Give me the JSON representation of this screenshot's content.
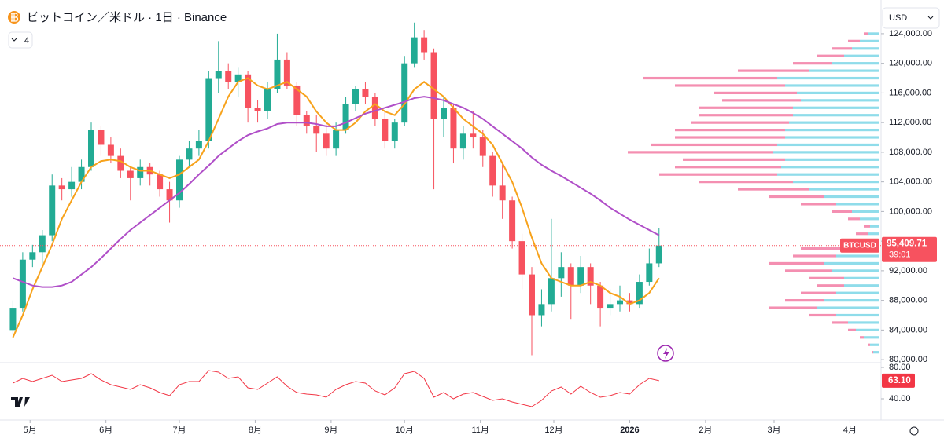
{
  "toolbar": {
    "currency": "USD",
    "hidden_indicators": 4
  },
  "chart_data": [
    {
      "type": "candlestick",
      "title": "ビットコイン／米ドル · 1日 · Binance",
      "symbol": "BTCUSD",
      "x": [
        0,
        4,
        8,
        12,
        16,
        20,
        24,
        28,
        32,
        36,
        40,
        44,
        48,
        52,
        56,
        60,
        64,
        68,
        72,
        76,
        80,
        84,
        88,
        92,
        96,
        100,
        104,
        108,
        112,
        116,
        120,
        124,
        128,
        132,
        136,
        140,
        144,
        148,
        152,
        156,
        160,
        164,
        168,
        172,
        176,
        180,
        184,
        188,
        192,
        196,
        200,
        204,
        208,
        212,
        216,
        220,
        224,
        228,
        232,
        236,
        240,
        244,
        248,
        252,
        256,
        260,
        264
      ],
      "open": [
        84000,
        87000,
        93500,
        94500,
        96800,
        103500,
        103000,
        104000,
        106000,
        111000,
        109000,
        107500,
        105500,
        104500,
        106000,
        105000,
        103000,
        101500,
        107000,
        108500,
        109500,
        118000,
        119000,
        117500,
        118500,
        114000,
        113500,
        116500,
        120500,
        117000,
        113000,
        111500,
        110500,
        108500,
        111000,
        114500,
        116500,
        115500,
        112500,
        109500,
        112000,
        120000,
        123500,
        121500,
        112500,
        114000,
        108500,
        110500,
        110000,
        107500,
        103500,
        101500,
        96000,
        91500,
        86000,
        87500,
        91000,
        92500,
        90000,
        92500,
        90000,
        87000,
        87500,
        88000,
        87500,
        90500,
        93000
      ],
      "high": [
        88000,
        94500,
        95500,
        97500,
        105000,
        104500,
        106000,
        107000,
        112000,
        111500,
        110000,
        108500,
        106000,
        107000,
        106500,
        105500,
        104000,
        107500,
        109500,
        111000,
        119000,
        123000,
        120000,
        119500,
        119000,
        115000,
        117500,
        124000,
        121500,
        117500,
        113500,
        113000,
        112000,
        112000,
        115500,
        117000,
        117500,
        116000,
        113500,
        112500,
        121000,
        125500,
        124500,
        122000,
        115500,
        114500,
        111500,
        113500,
        111000,
        108000,
        106500,
        102000,
        97000,
        92500,
        89500,
        99000,
        94500,
        93000,
        94000,
        93000,
        90500,
        89500,
        90000,
        89000,
        91500,
        95000,
        97800
      ],
      "low": [
        83500,
        86500,
        92500,
        93000,
        96000,
        101500,
        102000,
        103000,
        105500,
        107500,
        106500,
        104500,
        101500,
        103500,
        103500,
        102000,
        98500,
        100500,
        106000,
        107500,
        108500,
        116000,
        116500,
        115500,
        112000,
        112000,
        112500,
        116000,
        116500,
        111500,
        110500,
        108000,
        107500,
        107500,
        110500,
        113500,
        114500,
        111500,
        108500,
        108500,
        111500,
        119500,
        120500,
        103000,
        110000,
        106500,
        107000,
        108500,
        106000,
        102000,
        99000,
        95000,
        89500,
        80600,
        84500,
        86500,
        88500,
        85500,
        89000,
        87500,
        84500,
        86000,
        86500,
        86500,
        87000,
        90000,
        92500
      ],
      "close": [
        87000,
        93500,
        94500,
        96800,
        103500,
        103000,
        104000,
        106000,
        111000,
        109000,
        107500,
        105500,
        104500,
        106000,
        105000,
        103000,
        101500,
        107000,
        108500,
        109500,
        118000,
        119000,
        117500,
        118500,
        114000,
        113500,
        116500,
        120500,
        117000,
        113000,
        111500,
        110500,
        108500,
        111000,
        114500,
        116500,
        115500,
        112500,
        109500,
        112000,
        120000,
        123500,
        121500,
        112500,
        114000,
        108500,
        110500,
        110000,
        107500,
        103500,
        101500,
        96000,
        91500,
        86000,
        87500,
        91000,
        92500,
        90000,
        92500,
        90000,
        87000,
        87500,
        88000,
        87500,
        90500,
        93000,
        95409.71
      ],
      "up_color": "#22ab94",
      "down_color": "#f7525f",
      "series": [
        {
          "color": "#f7a21b",
          "values": [
            83000,
            86000,
            89500,
            92500,
            95500,
            99000,
            101500,
            104000,
            106000,
            106800,
            107000,
            106800,
            106000,
            105500,
            105500,
            105000,
            104500,
            105000,
            106000,
            107000,
            109500,
            112500,
            115500,
            117500,
            118000,
            117000,
            116500,
            117000,
            117500,
            116500,
            115500,
            113500,
            112000,
            111000,
            111000,
            112000,
            113500,
            114500,
            113500,
            113000,
            114500,
            116500,
            117500,
            116500,
            115500,
            114000,
            112500,
            111500,
            110500,
            109000,
            106500,
            104000,
            100500,
            96500,
            93000,
            91000,
            90500,
            90000,
            90000,
            90500,
            90000,
            89000,
            88500,
            87500,
            88000,
            89000,
            91000
          ]
        },
        {
          "color": "#b04fc8",
          "values": [
            91000,
            90500,
            90000,
            89800,
            89800,
            90000,
            90500,
            91500,
            92500,
            93700,
            95000,
            96300,
            97500,
            98500,
            99500,
            100500,
            101500,
            102500,
            103700,
            105000,
            106200,
            107500,
            108500,
            109500,
            110300,
            110800,
            111200,
            111800,
            112000,
            112000,
            112000,
            111800,
            111500,
            111500,
            112000,
            112600,
            113200,
            113600,
            114000,
            114400,
            114800,
            115300,
            115500,
            115300,
            115000,
            114500,
            114000,
            113300,
            112500,
            111500,
            110500,
            109500,
            108500,
            107300,
            106300,
            105500,
            104800,
            104000,
            103200,
            102400,
            101500,
            100500,
            99700,
            98900,
            98200,
            97500,
            96800
          ]
        }
      ],
      "last_price": 95409.71,
      "last_price_label": "95,409.71",
      "countdown": "39:01",
      "xlim": [
        -4,
        356
      ],
      "xticks": [
        {
          "value": 7,
          "label": "5月"
        },
        {
          "value": 38,
          "label": "6月"
        },
        {
          "value": 68,
          "label": "7月"
        },
        {
          "value": 99,
          "label": "8月"
        },
        {
          "value": 130,
          "label": "9月"
        },
        {
          "value": 160,
          "label": "10月"
        },
        {
          "value": 191,
          "label": "11月"
        },
        {
          "value": 221,
          "label": "12月"
        },
        {
          "value": 252,
          "label": "2026"
        },
        {
          "value": 283,
          "label": "2月"
        },
        {
          "value": 311,
          "label": "3月"
        },
        {
          "value": 342,
          "label": "4月"
        }
      ],
      "ylim": [
        79800,
        127700
      ],
      "yticks": [
        {
          "value": 80000,
          "label": "80,000.00"
        },
        {
          "value": 84000,
          "label": "84,000.00"
        },
        {
          "value": 88000,
          "label": "88,000.00"
        },
        {
          "value": 92000,
          "label": "92,000.00"
        },
        {
          "value": 96000,
          "label": "96,000.00"
        },
        {
          "value": 100000,
          "label": "100,000.00"
        },
        {
          "value": 104000,
          "label": "104,000.00"
        },
        {
          "value": 108000,
          "label": "108,000.00"
        },
        {
          "value": 112000,
          "label": "112,000.00"
        },
        {
          "value": 116000,
          "label": "116,000.00"
        },
        {
          "value": 120000,
          "label": "120,000.00"
        },
        {
          "value": 124000,
          "label": "124,000.00"
        }
      ],
      "grid": false,
      "volume_profile": {
        "levels": [
          81000,
          82000,
          83000,
          84000,
          85000,
          86000,
          87000,
          88000,
          89000,
          90000,
          91000,
          92000,
          93000,
          94000,
          95000,
          96000,
          97000,
          98000,
          99000,
          100000,
          101000,
          102000,
          103000,
          104000,
          105000,
          106000,
          107000,
          108000,
          109000,
          110000,
          111000,
          112000,
          113000,
          114000,
          115000,
          116000,
          117000,
          118000,
          119000,
          120000,
          121000,
          122000,
          123000,
          124000
        ],
        "up": [
          8,
          12,
          20,
          30,
          40,
          55,
          80,
          70,
          55,
          45,
          45,
          60,
          70,
          55,
          50,
          25,
          15,
          12,
          25,
          35,
          55,
          70,
          90,
          110,
          130,
          125,
          120,
          135,
          130,
          120,
          120,
          115,
          110,
          110,
          100,
          105,
          120,
          130,
          90,
          60,
          45,
          35,
          25,
          15
        ],
        "down": [
          2,
          3,
          5,
          10,
          20,
          35,
          60,
          50,
          45,
          35,
          45,
          60,
          70,
          55,
          50,
          25,
          15,
          8,
          15,
          25,
          45,
          70,
          90,
          120,
          150,
          135,
          130,
          185,
          160,
          140,
          140,
          125,
          120,
          120,
          100,
          105,
          140,
          170,
          90,
          50,
          35,
          25,
          15,
          5
        ],
        "up_color": "#8fdcea",
        "down_color": "#f48fb1",
        "xlim": [
          0,
          330
        ]
      }
    },
    {
      "type": "line",
      "color": "#f23645",
      "x": [
        0,
        4,
        8,
        12,
        16,
        20,
        24,
        28,
        32,
        36,
        40,
        44,
        48,
        52,
        56,
        60,
        64,
        68,
        72,
        76,
        80,
        84,
        88,
        92,
        96,
        100,
        104,
        108,
        112,
        116,
        120,
        124,
        128,
        132,
        136,
        140,
        144,
        148,
        152,
        156,
        160,
        164,
        168,
        172,
        176,
        180,
        184,
        188,
        192,
        196,
        200,
        204,
        208,
        212,
        216,
        220,
        224,
        228,
        232,
        236,
        240,
        244,
        248,
        252,
        256,
        260,
        264
      ],
      "values": [
        60,
        66,
        62,
        66,
        70,
        62,
        64,
        66,
        72,
        64,
        58,
        55,
        52,
        58,
        54,
        48,
        44,
        58,
        62,
        62,
        76,
        74,
        66,
        68,
        54,
        52,
        60,
        68,
        56,
        48,
        46,
        45,
        42,
        52,
        58,
        62,
        60,
        50,
        45,
        54,
        72,
        75,
        66,
        42,
        48,
        40,
        46,
        48,
        43,
        38,
        40,
        36,
        33,
        30,
        38,
        50,
        55,
        46,
        56,
        48,
        42,
        44,
        48,
        46,
        58,
        66,
        63.1
      ],
      "last_label": "63.10",
      "ylim": [
        18,
        84
      ],
      "yticks": [
        {
          "value": 40,
          "label": "40.00"
        },
        {
          "value": 80,
          "label": "80.00"
        }
      ]
    }
  ]
}
